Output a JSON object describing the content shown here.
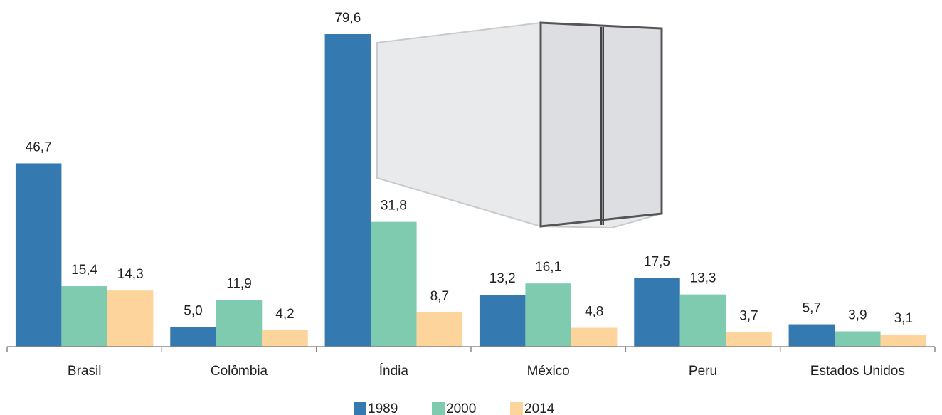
{
  "chart_data": {
    "type": "bar",
    "categories": [
      "Brasil",
      "Colômbia",
      "Índia",
      "México",
      "Peru",
      "Estados Unidos"
    ],
    "series": [
      {
        "name": "1989",
        "color": "#3579b1",
        "values": [
          46.7,
          5.0,
          79.6,
          13.2,
          17.5,
          5.7
        ],
        "value_labels": [
          "46,7",
          "5,0",
          "79,6",
          "13,2",
          "17,5",
          "5,7"
        ]
      },
      {
        "name": "2000",
        "color": "#7fcbaf",
        "values": [
          15.4,
          11.9,
          31.8,
          16.1,
          13.3,
          3.9
        ],
        "value_labels": [
          "15,4",
          "11,9",
          "31,8",
          "16,1",
          "13,3",
          "3,9"
        ]
      },
      {
        "name": "2014",
        "color": "#fdd49b",
        "values": [
          14.3,
          4.2,
          8.7,
          4.8,
          3.7,
          3.1
        ],
        "value_labels": [
          "14,3",
          "4,2",
          "8,7",
          "4,8",
          "3,7",
          "3,1"
        ]
      }
    ]
  }
}
